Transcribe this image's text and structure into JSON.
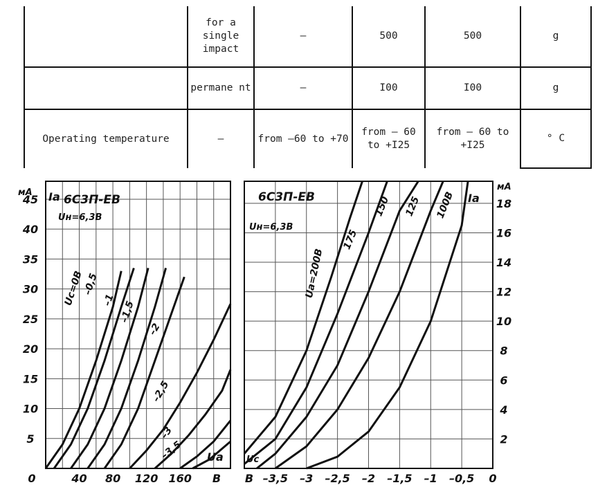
{
  "table": {
    "row1": {
      "condition": "for a single impact",
      "col1": "–",
      "col2": "500",
      "col3": "500",
      "unit": "g"
    },
    "row2": {
      "condition": "permanent",
      "condition_display": "permane nt",
      "col1": "–",
      "col2": "I00",
      "col3": "I00",
      "unit": "g"
    },
    "row3": {
      "parameter": "Operating temperature",
      "col0": "–",
      "col1": "from –60 to +70",
      "col2": "from – 60 to +I25",
      "col3": "from – 60 to +I25",
      "unit": "° C"
    }
  },
  "chart_data": [
    {
      "type": "line",
      "title": "6С3П-ЕВ",
      "annotation": "Uн=6,3В",
      "ylabel": "Ia",
      "yunit": "мА",
      "xlabel": "Ua",
      "xunit": "В",
      "x_ticks": [
        "0",
        "40",
        "80",
        "120",
        "160",
        "В"
      ],
      "y_ticks": [
        "5",
        "10",
        "15",
        "20",
        "25",
        "30",
        "35",
        "40",
        "45"
      ],
      "xlim": [
        0,
        220
      ],
      "ylim": [
        0,
        48
      ],
      "grid": true,
      "series": [
        {
          "name": "Uc=0В",
          "x": [
            0,
            20,
            40,
            60,
            80,
            90
          ],
          "y": [
            0,
            4,
            10,
            18,
            27,
            33
          ]
        },
        {
          "name": "–0,5",
          "x": [
            10,
            30,
            50,
            70,
            90,
            105
          ],
          "y": [
            0,
            4,
            10,
            18,
            27,
            33.5
          ]
        },
        {
          "name": "–1",
          "x": [
            30,
            50,
            70,
            90,
            110,
            122
          ],
          "y": [
            0,
            4,
            10,
            18,
            27,
            33.5
          ]
        },
        {
          "name": "–1,5",
          "x": [
            50,
            70,
            90,
            110,
            130,
            143
          ],
          "y": [
            0,
            4,
            10,
            18,
            27,
            33.5
          ]
        },
        {
          "name": "–2",
          "x": [
            70,
            90,
            110,
            130,
            150,
            165
          ],
          "y": [
            0,
            4,
            10,
            18,
            26,
            32
          ]
        },
        {
          "name": "–2,5",
          "x": [
            100,
            120,
            140,
            160,
            180,
            200,
            220
          ],
          "y": [
            0,
            3,
            6.5,
            11,
            16,
            21.5,
            27.5
          ]
        },
        {
          "name": "–3",
          "x": [
            130,
            150,
            170,
            190,
            210,
            220
          ],
          "y": [
            0,
            2.5,
            5.5,
            9,
            13,
            16.5
          ]
        },
        {
          "name": "–3,5",
          "x": [
            160,
            180,
            200,
            220
          ],
          "y": [
            0,
            2,
            4.5,
            8
          ]
        },
        {
          "name": "–3,5",
          "x": [
            175,
            195,
            220
          ],
          "y": [
            0,
            1.5,
            4.5
          ]
        }
      ]
    },
    {
      "type": "line",
      "title": "6С3П-ЕВ",
      "annotation": "Uн=6,3В",
      "ylabel": "Ia",
      "yunit": "мА",
      "xlabel": "Uc",
      "xunit": "В",
      "x_ticks": [
        "В",
        "–3,5",
        "–3",
        "–2,5",
        "–2",
        "–1,5",
        "–1",
        "–0,5",
        "0"
      ],
      "y_ticks": [
        "2",
        "4",
        "6",
        "8",
        "10",
        "12",
        "14",
        "16",
        "18"
      ],
      "xlim": [
        -4,
        0
      ],
      "ylim": [
        0,
        19.5
      ],
      "grid": true,
      "series": [
        {
          "name": "Ua=200В",
          "x": [
            -4,
            -3.5,
            -3,
            -2.6,
            -2.3,
            -2.1
          ],
          "y": [
            1,
            3.5,
            8,
            13,
            17,
            19.5
          ]
        },
        {
          "name": "175",
          "x": [
            -4,
            -3.5,
            -3,
            -2.5,
            -2,
            -1.7
          ],
          "y": [
            0.3,
            2,
            5.5,
            10.5,
            16,
            19.5
          ]
        },
        {
          "name": "150",
          "x": [
            -3.8,
            -3.5,
            -3,
            -2.5,
            -2,
            -1.5,
            -1.2
          ],
          "y": [
            0,
            1,
            3.5,
            7,
            12,
            17.5,
            19.5
          ]
        },
        {
          "name": "125",
          "x": [
            -3.5,
            -3,
            -2.5,
            -2,
            -1.5,
            -1,
            -0.8
          ],
          "y": [
            0,
            1.5,
            4,
            7.5,
            12,
            17.5,
            19.5
          ]
        },
        {
          "name": "100В",
          "x": [
            -3,
            -2.5,
            -2,
            -1.5,
            -1,
            -0.5,
            -0.4
          ],
          "y": [
            0,
            0.8,
            2.5,
            5.5,
            10,
            16.5,
            19.5
          ]
        }
      ]
    }
  ]
}
